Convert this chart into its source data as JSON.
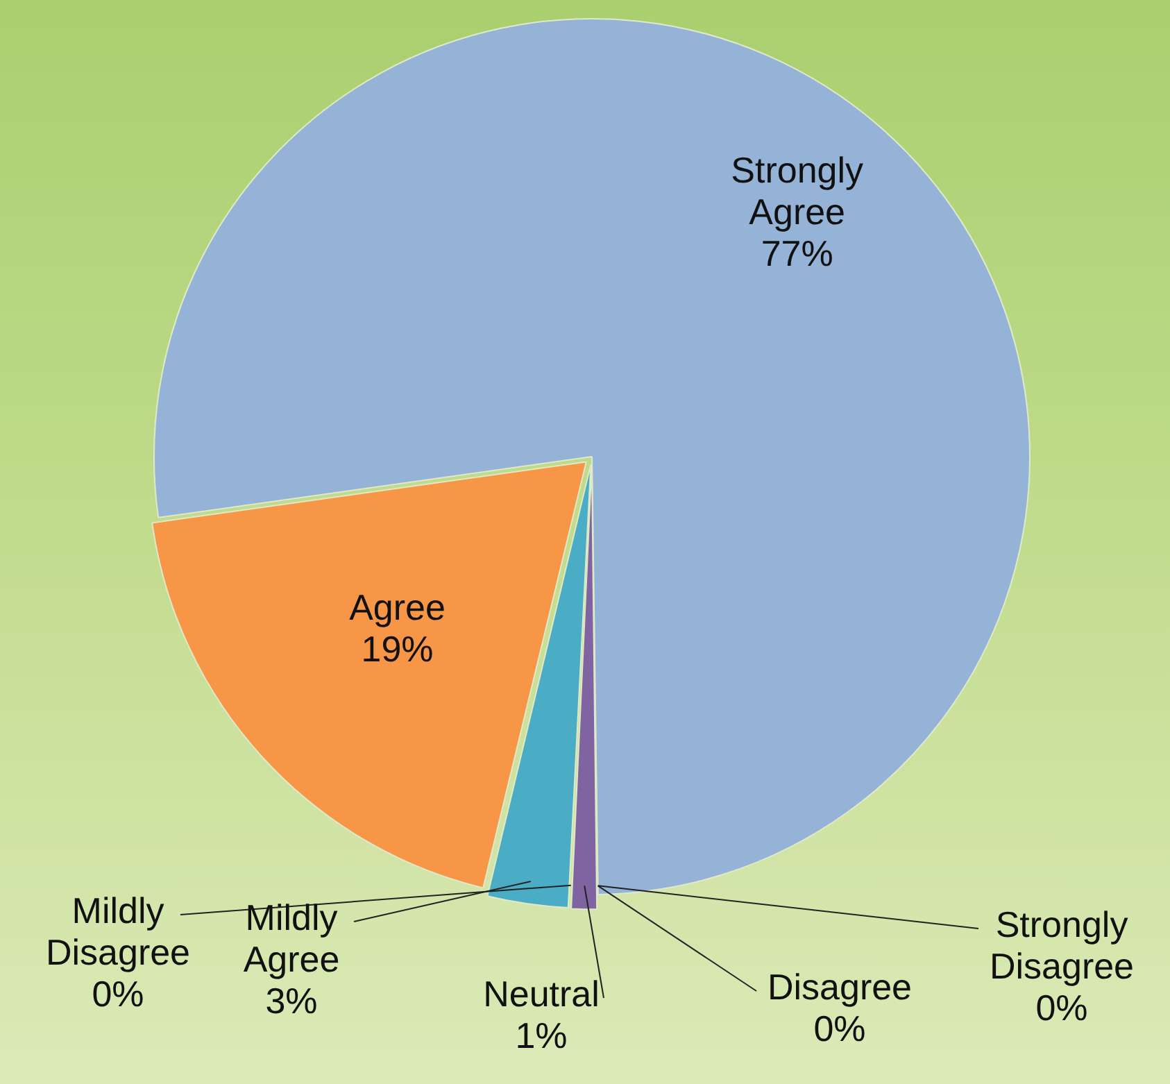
{
  "chart_data": {
    "type": "pie",
    "categories": [
      "Strongly Agree",
      "Strongly Disagree",
      "Disagree",
      "Neutral",
      "Mildly Disagree",
      "Mildly Agree",
      "Agree"
    ],
    "values": [
      77,
      0,
      0,
      1,
      0,
      3,
      19
    ],
    "colors": [
      "#95b3d7",
      "#9bbb59",
      "#c0504d",
      "#8064a2",
      "#4f81bd",
      "#4bacc6",
      "#f79646"
    ],
    "value_labels": [
      "77%",
      "0%",
      "0%",
      "1%",
      "0%",
      "3%",
      "19%"
    ],
    "legend": false
  }
}
